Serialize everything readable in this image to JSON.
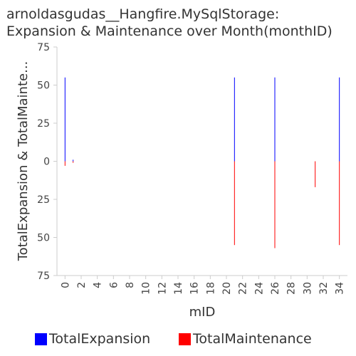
{
  "chart_data": {
    "type": "bar",
    "title_line1": "arnoldasgudas__Hangfire.MySqlStorage:",
    "title_line2": "Expansion & Maintenance over Month(monthID)",
    "xlabel": "mID",
    "ylabel": "TotalExpansion & TotalMainte...",
    "xlim": [
      -1,
      35
    ],
    "ylim": [
      -75,
      75
    ],
    "x_ticks": [
      "0",
      "2",
      "4",
      "6",
      "8",
      "10",
      "12",
      "14",
      "16",
      "18",
      "20",
      "22",
      "24",
      "26",
      "28",
      "30",
      "32",
      "34"
    ],
    "y_ticks": [
      "75",
      "50",
      "25",
      "0",
      "25",
      "50",
      "75"
    ],
    "y_tick_values": [
      75,
      50,
      25,
      0,
      -25,
      -50,
      -75
    ],
    "grid": false,
    "legend_position": "bottom",
    "series": [
      {
        "name": "TotalExpansion",
        "color": "#0000ff",
        "points": [
          {
            "x": 0,
            "y": 55
          },
          {
            "x": 1,
            "y": 1
          },
          {
            "x": 21,
            "y": 55
          },
          {
            "x": 26,
            "y": 55
          },
          {
            "x": 34,
            "y": 55
          }
        ]
      },
      {
        "name": "TotalMaintenance",
        "color": "#ff0000",
        "points": [
          {
            "x": 0,
            "y": -3
          },
          {
            "x": 1,
            "y": -1
          },
          {
            "x": 21,
            "y": -55
          },
          {
            "x": 26,
            "y": -57
          },
          {
            "x": 31,
            "y": -17
          },
          {
            "x": 34,
            "y": -55
          }
        ]
      }
    ]
  }
}
